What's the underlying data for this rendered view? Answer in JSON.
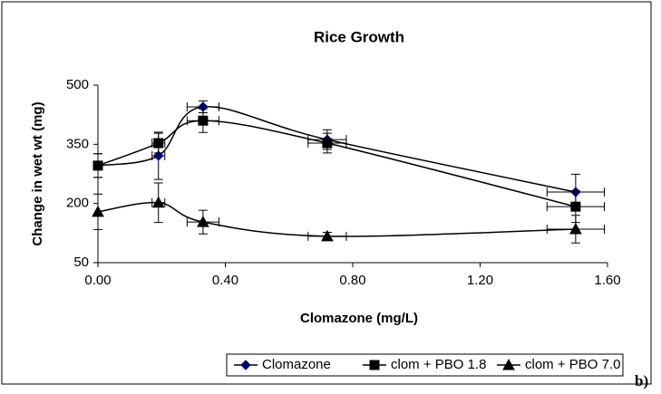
{
  "chart_data": {
    "type": "line",
    "title": "Rice Growth",
    "x_label": "Clomazone (mg/L)",
    "y_label": "Change in wet wt (mg)",
    "panel_label": "b)",
    "xlim": [
      0,
      1.6
    ],
    "xticks": [
      {
        "value": 0,
        "label": "0.00"
      },
      {
        "value": 0.4,
        "label": "0.40"
      },
      {
        "value": 0.8,
        "label": "0.80"
      },
      {
        "value": 1.2,
        "label": "1.20"
      },
      {
        "value": 1.6,
        "label": "1.60"
      }
    ],
    "ylim": [
      50,
      500
    ],
    "yticks": [
      50,
      200,
      350,
      500
    ],
    "x": [
      0,
      0.19,
      0.33,
      0.72,
      1.5
    ],
    "series": [
      {
        "name": "Clomazone",
        "color": "#000080",
        "marker": "diamond",
        "values": [
          296,
          321,
          445,
          362,
          229
        ],
        "yerr": [
          30,
          60,
          15,
          25,
          45
        ],
        "xerr": [
          0,
          0.02,
          0.05,
          0.06,
          0.09
        ]
      },
      {
        "name": "clom + PBO 1.8",
        "color": "#000000",
        "marker": "square",
        "values": [
          296,
          353,
          410,
          353,
          192
        ],
        "yerr": [
          30,
          25,
          30,
          25,
          40
        ],
        "xerr": [
          0,
          0.02,
          0.05,
          0.06,
          0.09
        ]
      },
      {
        "name": "clom + PBO 7.0",
        "color": "#000000",
        "marker": "triangle",
        "values": [
          179,
          202,
          153,
          117,
          135
        ],
        "yerr": [
          45,
          50,
          30,
          10,
          35
        ],
        "xerr": [
          0,
          0.02,
          0.05,
          0.06,
          0.09
        ]
      }
    ]
  }
}
